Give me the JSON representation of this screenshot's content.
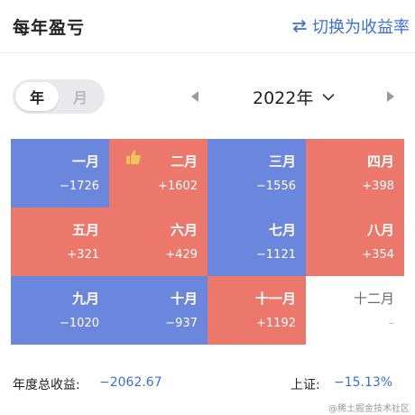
{
  "header": {
    "title": "每年盈亏",
    "switch_label": "切换为收益率",
    "switch_icon": "swap-arrows-icon",
    "accent_color": "#3b6fe0"
  },
  "period_toggle": {
    "options": [
      {
        "label": "年",
        "selected": true
      },
      {
        "label": "月",
        "selected": false
      }
    ]
  },
  "year_nav": {
    "year": "2022年",
    "prev_icon": "triangle-left-icon",
    "next_icon": "triangle-right-icon",
    "dropdown_icon": "chevron-down-icon"
  },
  "colors": {
    "loss": "#6b86dd",
    "gain": "#ec786b",
    "empty": "#ffffff"
  },
  "months": [
    {
      "name": "一月",
      "value": "−1726",
      "status": "loss",
      "badge": ""
    },
    {
      "name": "二月",
      "value": "+1602",
      "status": "gain",
      "badge": "thumbs-up-icon"
    },
    {
      "name": "三月",
      "value": "−1556",
      "status": "loss",
      "badge": ""
    },
    {
      "name": "四月",
      "value": "+398",
      "status": "gain",
      "badge": ""
    },
    {
      "name": "五月",
      "value": "+321",
      "status": "gain",
      "badge": ""
    },
    {
      "name": "六月",
      "value": "+429",
      "status": "gain",
      "badge": ""
    },
    {
      "name": "七月",
      "value": "−1121",
      "status": "loss",
      "badge": ""
    },
    {
      "name": "八月",
      "value": "+354",
      "status": "gain",
      "badge": ""
    },
    {
      "name": "九月",
      "value": "−1020",
      "status": "loss",
      "badge": ""
    },
    {
      "name": "十月",
      "value": "−937",
      "status": "loss",
      "badge": ""
    },
    {
      "name": "十一月",
      "value": "+1192",
      "status": "gain",
      "badge": ""
    },
    {
      "name": "十二月",
      "value": "–",
      "status": "none",
      "badge": ""
    }
  ],
  "summary": {
    "total_label": "年度总收益:",
    "total_value": "−2062.67",
    "index_label": "上证:",
    "index_value": "−15.13%"
  },
  "watermark": "@稀土掘金技术社区"
}
